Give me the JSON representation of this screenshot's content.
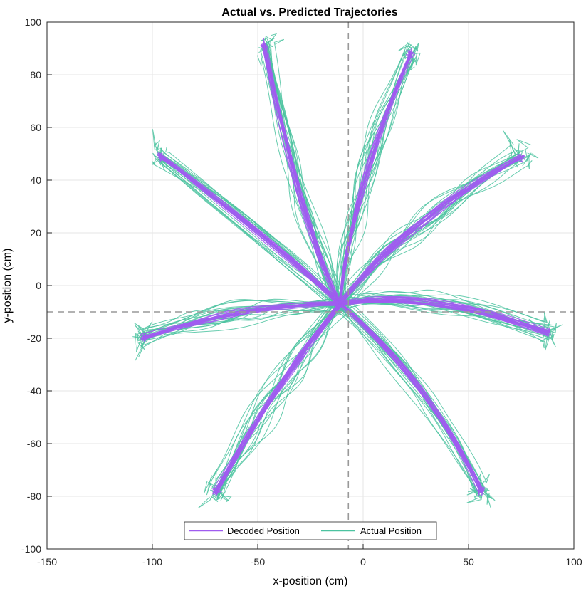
{
  "chart_data": {
    "type": "line",
    "title": "Actual vs. Predicted Trajectories",
    "xlabel": "x-position (cm)",
    "ylabel": "y-position (cm)",
    "xlim": [
      -150,
      100
    ],
    "ylim": [
      -100,
      100
    ],
    "xticks": [
      -150,
      -100,
      -50,
      0,
      50,
      100
    ],
    "yticks": [
      -100,
      -80,
      -60,
      -40,
      -20,
      0,
      20,
      40,
      60,
      80,
      100
    ],
    "grid": true,
    "reference_lines": {
      "x": -7,
      "y": -10
    },
    "legend": {
      "position": "bottom-center",
      "entries": [
        "Decoded Position",
        "Actual Position"
      ]
    },
    "colors": {
      "decoded": "#a05cf0",
      "actual": "#4cc3a0",
      "grid": "#e6e6e6",
      "reference": "#999999"
    },
    "center": [
      -11,
      -7
    ],
    "targets": [
      {
        "name": "up-left",
        "x": -47,
        "y": 91,
        "via": [
          -28,
          20
        ]
      },
      {
        "name": "up-right",
        "x": 23,
        "y": 88,
        "via": [
          -6,
          35
        ]
      },
      {
        "name": "right-up",
        "x": 75,
        "y": 49,
        "via": [
          20,
          25
        ]
      },
      {
        "name": "left-up",
        "x": -96,
        "y": 49,
        "via": [
          -40,
          15
        ]
      },
      {
        "name": "left",
        "x": -104,
        "y": -20,
        "via": [
          -55,
          -7
        ]
      },
      {
        "name": "right",
        "x": 88,
        "y": -18,
        "via": [
          30,
          -1
        ]
      },
      {
        "name": "down-left",
        "x": -70,
        "y": -78,
        "via": [
          -40,
          -35
        ]
      },
      {
        "name": "down-right",
        "x": 56,
        "y": -78,
        "via": [
          30,
          -35
        ]
      }
    ],
    "series": [
      {
        "name": "Decoded Position",
        "trials_per_target": 20
      },
      {
        "name": "Actual Position",
        "trials_per_target": 20
      }
    ]
  }
}
